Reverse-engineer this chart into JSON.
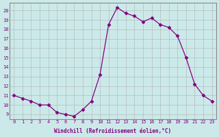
{
  "x": [
    0,
    1,
    2,
    3,
    4,
    5,
    6,
    7,
    8,
    9,
    10,
    11,
    12,
    13,
    14,
    15,
    16,
    17,
    18,
    19,
    20,
    21,
    22,
    23
  ],
  "y": [
    11.0,
    10.7,
    10.4,
    10.0,
    10.0,
    9.2,
    9.0,
    8.8,
    9.5,
    10.4,
    13.2,
    18.5,
    20.3,
    19.7,
    19.4,
    18.8,
    19.2,
    18.5,
    18.2,
    17.3,
    15.0,
    12.2,
    11.0,
    10.4
  ],
  "line_color": "#800080",
  "marker": "D",
  "marker_size": 2.5,
  "background_color": "#cce9e9",
  "grid_color": "#aaaaaa",
  "xlabel": "Windchill (Refroidissement éolien,°C)",
  "xlabel_color": "#800080",
  "tick_color": "#800080",
  "yticks": [
    9,
    10,
    11,
    12,
    13,
    14,
    15,
    16,
    17,
    18,
    19,
    20
  ],
  "xticks": [
    0,
    1,
    2,
    3,
    4,
    5,
    6,
    7,
    8,
    9,
    10,
    11,
    12,
    13,
    14,
    15,
    16,
    17,
    18,
    19,
    20,
    21,
    22,
    23
  ],
  "xlim": [
    -0.5,
    23.5
  ],
  "ylim": [
    8.5,
    20.8
  ]
}
